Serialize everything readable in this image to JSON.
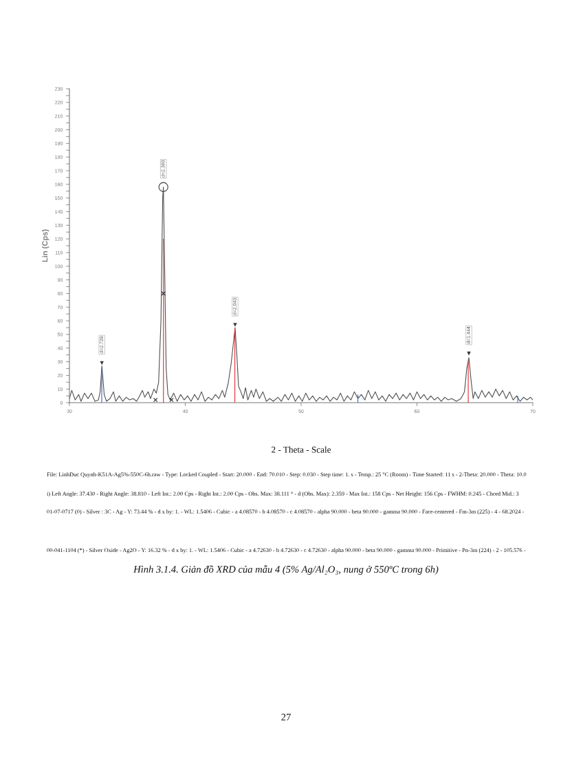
{
  "chart_data": {
    "type": "line",
    "xlabel": "2 - Theta - Scale",
    "ylabel": "Lin (Cps)",
    "xlim": [
      30,
      70
    ],
    "xticks": [
      30,
      40,
      50,
      60,
      70
    ],
    "ylim": [
      0,
      230
    ],
    "yticks": [
      0,
      {
        "value": 5,
        "label": null
      },
      10,
      {
        "value": 15,
        "label": null
      },
      20,
      {
        "value": 25,
        "label": null
      },
      30,
      {
        "value": 35,
        "label": null
      },
      40,
      {
        "value": 45,
        "label": null
      },
      50,
      {
        "value": 55,
        "label": null
      },
      60,
      {
        "value": 65,
        "label": null
      },
      70,
      {
        "value": 75,
        "label": null
      },
      80,
      {
        "value": 85,
        "label": null
      },
      90,
      {
        "value": 95,
        "label": null
      },
      100,
      {
        "value": 105,
        "label": null
      },
      110,
      {
        "value": 115,
        "label": null
      },
      120,
      {
        "value": 125,
        "label": null
      },
      130,
      {
        "value": 135,
        "label": null
      },
      140,
      {
        "value": 145,
        "label": null
      },
      150,
      {
        "value": 155,
        "label": null
      },
      160,
      {
        "value": 165,
        "label": null
      },
      170,
      {
        "value": 175,
        "label": null
      },
      180,
      {
        "value": 185,
        "label": null
      },
      190,
      {
        "value": 195,
        "label": null
      },
      200,
      {
        "value": 205,
        "label": null
      },
      210,
      {
        "value": 215,
        "label": null
      },
      220,
      {
        "value": 225,
        "label": null
      },
      230
    ],
    "series": [
      {
        "color": "#505050",
        "marker": "none",
        "line_style": "solid",
        "x": [
          30.0,
          30.2,
          30.5,
          30.8,
          31.0,
          31.3,
          31.6,
          31.9,
          32.2,
          32.5,
          32.65,
          32.8,
          33.0,
          33.2,
          33.5,
          33.8,
          34.0,
          34.3,
          34.6,
          34.9,
          35.2,
          35.5,
          35.8,
          36.0,
          36.3,
          36.5,
          36.8,
          37.0,
          37.3,
          37.5,
          37.7,
          37.9,
          38.05,
          38.11,
          38.2,
          38.35,
          38.5,
          38.7,
          39.0,
          39.3,
          39.6,
          39.9,
          40.2,
          40.5,
          40.8,
          41.1,
          41.4,
          41.7,
          42.0,
          42.3,
          42.6,
          42.9,
          43.2,
          43.4,
          43.7,
          43.95,
          44.3,
          44.45,
          44.6,
          44.8,
          45.0,
          45.2,
          45.4,
          45.7,
          45.9,
          46.1,
          46.4,
          46.7,
          47.0,
          47.3,
          47.6,
          48.0,
          48.3,
          48.6,
          48.9,
          49.2,
          49.5,
          49.8,
          50.1,
          50.4,
          50.7,
          51.0,
          51.3,
          51.6,
          51.9,
          52.2,
          52.5,
          52.8,
          53.1,
          53.4,
          53.7,
          54.0,
          54.3,
          54.6,
          54.9,
          55.2,
          55.5,
          55.8,
          56.1,
          56.4,
          56.7,
          57.0,
          57.3,
          57.6,
          57.9,
          58.2,
          58.5,
          58.8,
          59.1,
          59.4,
          59.7,
          60.0,
          60.3,
          60.6,
          60.9,
          61.2,
          61.5,
          61.8,
          62.1,
          62.4,
          62.7,
          63.0,
          63.4,
          63.8,
          64.1,
          64.3,
          64.48,
          64.65,
          64.85,
          65.0,
          65.3,
          65.6,
          65.9,
          66.2,
          66.5,
          66.8,
          67.1,
          67.4,
          67.7,
          68.0,
          68.3,
          68.6,
          68.9,
          69.2,
          69.5,
          69.8,
          70.0
        ],
        "values": [
          3,
          9,
          2,
          6,
          1,
          7,
          3,
          7,
          1,
          2,
          8,
          27,
          6,
          1,
          3,
          8,
          1,
          5,
          1,
          4,
          2,
          3,
          1,
          4,
          9,
          4,
          8,
          3,
          10,
          7,
          15,
          60,
          150,
          158,
          110,
          25,
          6,
          2,
          7,
          1,
          6,
          2,
          5,
          1,
          6,
          2,
          8,
          1,
          4,
          2,
          6,
          3,
          9,
          4,
          14,
          28,
          55,
          35,
          12,
          8,
          3,
          11,
          2,
          9,
          4,
          10,
          3,
          8,
          1,
          3,
          1,
          4,
          1,
          6,
          2,
          7,
          1,
          5,
          1,
          7,
          2,
          5,
          1,
          4,
          2,
          5,
          1,
          4,
          2,
          7,
          1,
          5,
          2,
          8,
          3,
          6,
          2,
          9,
          3,
          8,
          2,
          5,
          1,
          6,
          3,
          7,
          2,
          6,
          3,
          7,
          2,
          8,
          3,
          6,
          2,
          5,
          2,
          4,
          1,
          4,
          2,
          3,
          1,
          3,
          8,
          25,
          33,
          18,
          3,
          8,
          3,
          9,
          4,
          8,
          4,
          10,
          5,
          9,
          3,
          8,
          2,
          5,
          1,
          4,
          2,
          4,
          2
        ]
      },
      {
        "type": "bar",
        "color": "#e8323c",
        "x": [
          38.116,
          44.277,
          64.426
        ],
        "values": [
          120,
          54,
          30
        ]
      },
      {
        "type": "bar",
        "color": "#3c6fc8",
        "x": [
          32.79,
          54.9,
          68.7
        ],
        "values": [
          25,
          6,
          5
        ]
      },
      {
        "type": "scatter",
        "color": "#3a3a3a",
        "marker": "triangle",
        "x": [
          32.8,
          44.3,
          64.48
        ],
        "values": [
          29,
          57,
          36
        ]
      },
      {
        "type": "scatter",
        "color": "#3a3a3a",
        "marker": "circle",
        "x": [
          38.111
        ],
        "values": [
          158
        ]
      },
      {
        "type": "scatter",
        "color": "#3a3a3a",
        "marker": "cross",
        "x": [
          37.43,
          38.111,
          38.81
        ],
        "values": [
          2,
          80,
          2
        ]
      }
    ],
    "annotations": [
      {
        "text": "d=2.728",
        "x": 32.8,
        "y": 29
      },
      {
        "text": "d=2.360",
        "x": 38.111,
        "y": 158
      },
      {
        "text": "d=2.043",
        "x": 44.3,
        "y": 57
      },
      {
        "text": "d=1.444",
        "x": 64.48,
        "y": 36
      },
      "File: LinhDuc Quynh-K51A-Ag5%-550C-6h.raw - Type: Locked Coupled - Start: 20.000 - End: 70.010 - Step: 0.030 - Step time: 1. s - Temp.: 25 °C (Room) - Time Started: 11 s - 2-Theta: 20.000 - Theta: 10.0",
      "i) Left Angle: 37.430 - Right Angle: 38.810 - Left Int.: 2.00 Cps - Right Int.: 2.00 Cps - Obs. Max: 38.111 ° - d (Obs. Max): 2.359 - Max Int.: 158 Cps - Net Height: 156 Cps - FWHM: 0.245 - Chord Mid.: 3",
      "01-07-0717 (0) - Silver : 3C - Ag - Y: 73.44 % - d x by: 1. - WL: 1.5406 - Cubic - a 4.08570 - b 4.08570 - c 4.08570 - alpha 90.000 - beta 90.000 - gamma 90.000 - Face-centered - Fm-3m (225) - 4 - 68.2024 -",
      "00-041-1104 (*) - Silver Oxide - Ag2O - Y: 16.32 % - d x by: 1. - WL: 1.5406 - Cubic - a 4.72630 - b 4.72630 - c 4.72630 - alpha 90.000 - beta 90.000 - gamma 90.000 - Primitive - Pn-3m (224) - 2 - 105.576 -",
      "Hình 3.1.4. Giản đồ XRD của mẫu 4 (5% Ag/Al₂O₃, nung ở 550ºC trong 6h)",
      "27"
    ]
  }
}
